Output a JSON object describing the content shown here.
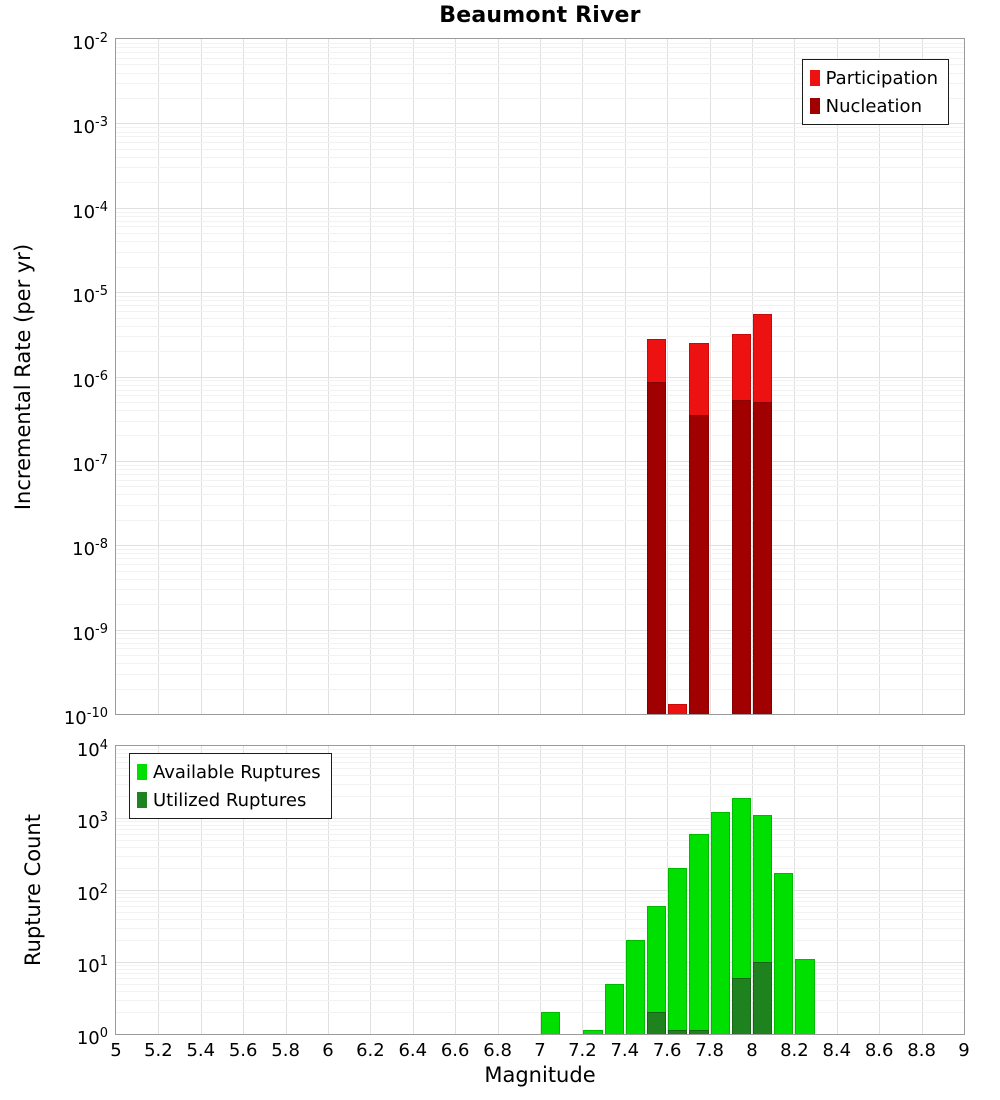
{
  "title": "Beaumont River",
  "x_axis": {
    "label": "Magnitude",
    "min": 5,
    "max": 9,
    "ticks": [
      {
        "value": 5,
        "label": "5"
      },
      {
        "value": 5.2,
        "label": "5.2"
      },
      {
        "value": 5.4,
        "label": "5.4"
      },
      {
        "value": 5.6,
        "label": "5.6"
      },
      {
        "value": 5.8,
        "label": "5.8"
      },
      {
        "value": 6,
        "label": "6"
      },
      {
        "value": 6.2,
        "label": "6.2"
      },
      {
        "value": 6.4,
        "label": "6.4"
      },
      {
        "value": 6.6,
        "label": "6.6"
      },
      {
        "value": 6.8,
        "label": "6.8"
      },
      {
        "value": 7,
        "label": "7"
      },
      {
        "value": 7.2,
        "label": "7.2"
      },
      {
        "value": 7.4,
        "label": "7.4"
      },
      {
        "value": 7.6,
        "label": "7.6"
      },
      {
        "value": 7.8,
        "label": "7.8"
      },
      {
        "value": 8,
        "label": "8"
      },
      {
        "value": 8.2,
        "label": "8.2"
      },
      {
        "value": 8.4,
        "label": "8.4"
      },
      {
        "value": 8.6,
        "label": "8.6"
      },
      {
        "value": 8.8,
        "label": "8.8"
      },
      {
        "value": 9,
        "label": "9"
      }
    ]
  },
  "chart_data": [
    {
      "type": "bar",
      "panel": "incremental-rate",
      "ylabel": "Incremental Rate (per yr)",
      "yscale": "log",
      "ylim": [
        1e-10,
        0.01
      ],
      "ytick_exponents": [
        -2,
        -3,
        -4,
        -5,
        -6,
        -7,
        -8,
        -9,
        -10
      ],
      "bin_width": 0.1,
      "legend_position": "top-right",
      "grid": true,
      "series": [
        {
          "name": "Participation",
          "color": "#ee1111",
          "border": "#c60b0b",
          "points": [
            {
              "mag": 7.55,
              "value": 2.8e-06
            },
            {
              "mag": 7.65,
              "value": 1.3e-10
            },
            {
              "mag": 7.75,
              "value": 2.5e-06
            },
            {
              "mag": 7.95,
              "value": 3.2e-06
            },
            {
              "mag": 8.05,
              "value": 5.5e-06
            }
          ]
        },
        {
          "name": "Nucleation",
          "color": "#a00000",
          "border": "#870000",
          "points": [
            {
              "mag": 7.55,
              "value": 8.5e-07
            },
            {
              "mag": 7.75,
              "value": 3.5e-07
            },
            {
              "mag": 7.95,
              "value": 5.3e-07
            },
            {
              "mag": 8.05,
              "value": 5e-07
            }
          ]
        }
      ]
    },
    {
      "type": "bar",
      "panel": "rupture-count",
      "ylabel": "Rupture Count",
      "yscale": "log",
      "ylim": [
        1,
        10000
      ],
      "ytick_exponents": [
        0,
        1,
        2,
        3,
        4
      ],
      "bin_width": 0.1,
      "legend_position": "top-left",
      "grid": true,
      "series": [
        {
          "name": "Available Ruptures",
          "color": "#00e000",
          "border": "#00ba00",
          "points": [
            {
              "mag": 7.05,
              "value": 2
            },
            {
              "mag": 7.25,
              "value": 1
            },
            {
              "mag": 7.35,
              "value": 5
            },
            {
              "mag": 7.45,
              "value": 20
            },
            {
              "mag": 7.55,
              "value": 60
            },
            {
              "mag": 7.65,
              "value": 200
            },
            {
              "mag": 7.75,
              "value": 600
            },
            {
              "mag": 7.85,
              "value": 1200
            },
            {
              "mag": 7.95,
              "value": 1900
            },
            {
              "mag": 8.05,
              "value": 1100
            },
            {
              "mag": 8.15,
              "value": 170
            },
            {
              "mag": 8.25,
              "value": 11
            }
          ]
        },
        {
          "name": "Utilized Ruptures",
          "color": "#1e821e",
          "border": "#166416",
          "points": [
            {
              "mag": 7.55,
              "value": 2
            },
            {
              "mag": 7.65,
              "value": 1
            },
            {
              "mag": 7.75,
              "value": 1
            },
            {
              "mag": 7.95,
              "value": 6
            },
            {
              "mag": 8.05,
              "value": 10
            }
          ]
        }
      ]
    }
  ],
  "colors": {
    "background": "#ffffff",
    "grid_major": "#e0e0e0",
    "grid_minor": "#f2f2f2",
    "panel_border": "#9b9b9b",
    "text": "#000000"
  }
}
